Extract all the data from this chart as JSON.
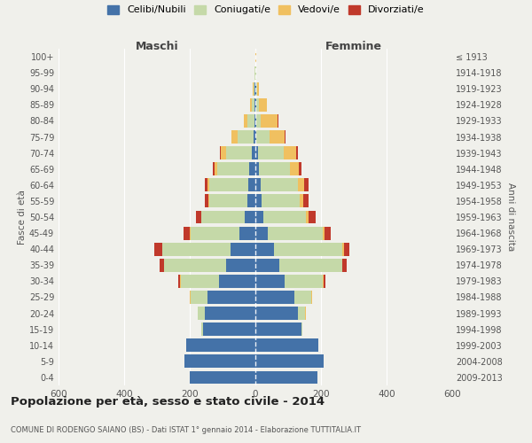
{
  "age_groups": [
    "0-4",
    "5-9",
    "10-14",
    "15-19",
    "20-24",
    "25-29",
    "30-34",
    "35-39",
    "40-44",
    "45-49",
    "50-54",
    "55-59",
    "60-64",
    "65-69",
    "70-74",
    "75-79",
    "80-84",
    "85-89",
    "90-94",
    "95-99",
    "100+"
  ],
  "birth_years": [
    "2009-2013",
    "2004-2008",
    "1999-2003",
    "1994-1998",
    "1989-1993",
    "1984-1988",
    "1979-1983",
    "1974-1978",
    "1969-1973",
    "1964-1968",
    "1959-1963",
    "1954-1958",
    "1949-1953",
    "1944-1948",
    "1939-1943",
    "1934-1938",
    "1929-1933",
    "1924-1928",
    "1919-1923",
    "1914-1918",
    "≤ 1913"
  ],
  "maschi": {
    "celibi": [
      200,
      215,
      210,
      160,
      155,
      145,
      110,
      90,
      75,
      50,
      32,
      25,
      22,
      18,
      12,
      6,
      3,
      3,
      2,
      1,
      1
    ],
    "coniugati": [
      0,
      0,
      0,
      4,
      22,
      52,
      118,
      188,
      208,
      148,
      132,
      115,
      118,
      98,
      78,
      48,
      20,
      8,
      4,
      1,
      0
    ],
    "vedovi": [
      0,
      0,
      0,
      0,
      0,
      2,
      1,
      1,
      2,
      2,
      2,
      3,
      5,
      8,
      15,
      18,
      12,
      5,
      1,
      0,
      0
    ],
    "divorziati": [
      0,
      0,
      0,
      0,
      0,
      2,
      5,
      12,
      22,
      18,
      15,
      12,
      8,
      5,
      3,
      2,
      1,
      0,
      0,
      0,
      0
    ]
  },
  "femmine": {
    "nubili": [
      188,
      208,
      192,
      140,
      130,
      118,
      88,
      72,
      58,
      38,
      24,
      18,
      16,
      10,
      8,
      4,
      3,
      3,
      2,
      1,
      1
    ],
    "coniugate": [
      0,
      0,
      0,
      4,
      22,
      52,
      118,
      192,
      208,
      168,
      130,
      118,
      115,
      95,
      78,
      38,
      14,
      7,
      3,
      1,
      0
    ],
    "vedove": [
      0,
      0,
      0,
      0,
      1,
      2,
      2,
      2,
      3,
      5,
      8,
      10,
      18,
      28,
      38,
      48,
      50,
      25,
      5,
      2,
      1
    ],
    "divorziate": [
      0,
      0,
      0,
      0,
      0,
      2,
      5,
      12,
      18,
      20,
      22,
      15,
      12,
      8,
      5,
      3,
      2,
      1,
      0,
      0,
      0
    ]
  },
  "colors": {
    "celibi": "#4472a8",
    "coniugati": "#c5d9a8",
    "vedovi": "#f0c060",
    "divorziati": "#c0392b"
  },
  "xlim": 600,
  "title": "Popolazione per età, sesso e stato civile - 2014",
  "subtitle": "COMUNE DI RODENGO SAIANO (BS) - Dati ISTAT 1° gennaio 2014 - Elaborazione TUTTITALIA.IT",
  "ylabel_left": "Fasce di età",
  "ylabel_right": "Anni di nascita",
  "xlabel_maschi": "Maschi",
  "xlabel_femmine": "Femmine",
  "legend_labels": [
    "Celibi/Nubili",
    "Coniugati/e",
    "Vedovi/e",
    "Divorziati/e"
  ],
  "bg_color": "#f0f0eb"
}
